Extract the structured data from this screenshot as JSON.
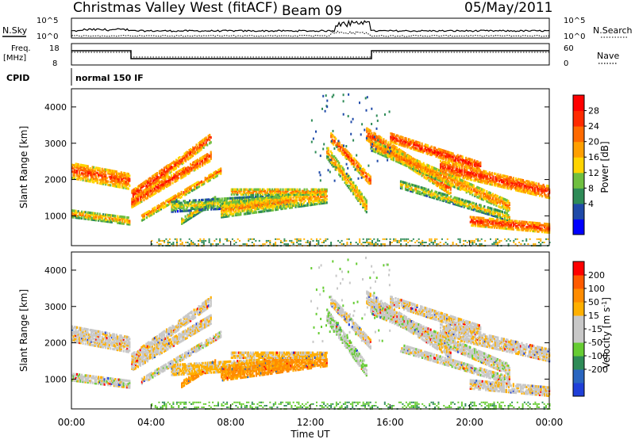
{
  "header": {
    "station": "Christmas Valley West (fitACF)",
    "beam": "Beam 09",
    "date": "05/May/2011"
  },
  "top_panels": {
    "nsky_label": "N.Sky",
    "nsearch_label": "N.Search",
    "noise_ticks": [
      "10^5",
      "10^0"
    ],
    "freq_label_1": "Freq.",
    "freq_label_2": "[MHz]",
    "freq_ticks": [
      "18",
      "8"
    ],
    "nave_label": "Nave",
    "nave_ticks": [
      "60",
      "0"
    ],
    "cpid_label": "CPID",
    "cpid_text": "normal 150 IF"
  },
  "colors": {
    "power_scale": [
      "#0000ff",
      "#1f4aa8",
      "#2e8b57",
      "#6fbf3f",
      "#ffd400",
      "#ff9f00",
      "#ff6a00",
      "#ff2a00",
      "#ff0000"
    ],
    "velocity_scale": [
      "#1f3fd8",
      "#2a66c0",
      "#2e8b57",
      "#66cc33",
      "#c8c8c8",
      "#c8c8c8",
      "#ffb000",
      "#ff8c00",
      "#ff5a00",
      "#ff0000"
    ]
  },
  "chart_data": [
    {
      "type": "heatmap",
      "title": "Power",
      "ylabel": "Slant Range [km]",
      "xlabel": "",
      "x_range": [
        "00:00",
        "24:00"
      ],
      "ylim": [
        180,
        4500
      ],
      "yticks": [
        "4000",
        "3000",
        "2000",
        "1000"
      ],
      "colorbar_label": "Power [dB]",
      "colorbar_ticks": [
        "28",
        "24",
        "20",
        "16",
        "12",
        "8",
        "4"
      ],
      "colorbar_range": [
        0,
        30
      ]
    },
    {
      "type": "heatmap",
      "title": "Velocity",
      "ylabel": "Slant Range [km]",
      "xlabel": "Time UT",
      "x_ticks": [
        "00:00",
        "04:00",
        "08:00",
        "12:00",
        "16:00",
        "20:00",
        "00:00"
      ],
      "ylim": [
        180,
        4500
      ],
      "yticks": [
        "4000",
        "3000",
        "2000",
        "1000"
      ],
      "colorbar_label_main": "Velocity [m s",
      "colorbar_label_sup": "-1",
      "colorbar_label_end": "]",
      "colorbar_ticks": [
        "200",
        "100",
        "50",
        "15",
        "-15",
        "-50",
        "-100",
        "-200"
      ],
      "colorbar_range": [
        -250,
        250
      ]
    }
  ]
}
